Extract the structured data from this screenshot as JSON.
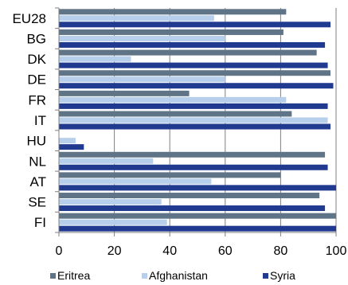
{
  "chart_data": {
    "type": "bar",
    "orientation": "horizontal",
    "categories": [
      "EU28",
      "BG",
      "DK",
      "DE",
      "FR",
      "IT",
      "HU",
      "NL",
      "AT",
      "SE",
      "FI"
    ],
    "series": [
      {
        "name": "Eritrea",
        "color": "#5f7486",
        "values": [
          82,
          81,
          93,
          98,
          47,
          84,
          null,
          96,
          80,
          94,
          100
        ]
      },
      {
        "name": "Afghanistan",
        "color": "#b8cfeb",
        "values": [
          56,
          60,
          26,
          60,
          82,
          97,
          6,
          34,
          55,
          37,
          39
        ]
      },
      {
        "name": "Syria",
        "color": "#203a8f",
        "values": [
          98,
          96,
          97,
          99,
          97,
          98,
          9,
          97,
          100,
          96,
          100
        ]
      }
    ],
    "xlim": [
      0,
      100
    ],
    "xticks": [
      "0",
      "20",
      "40",
      "60",
      "80",
      "100"
    ],
    "grid": true,
    "legend_position": "bottom",
    "title": "",
    "xlabel": "",
    "ylabel": ""
  }
}
